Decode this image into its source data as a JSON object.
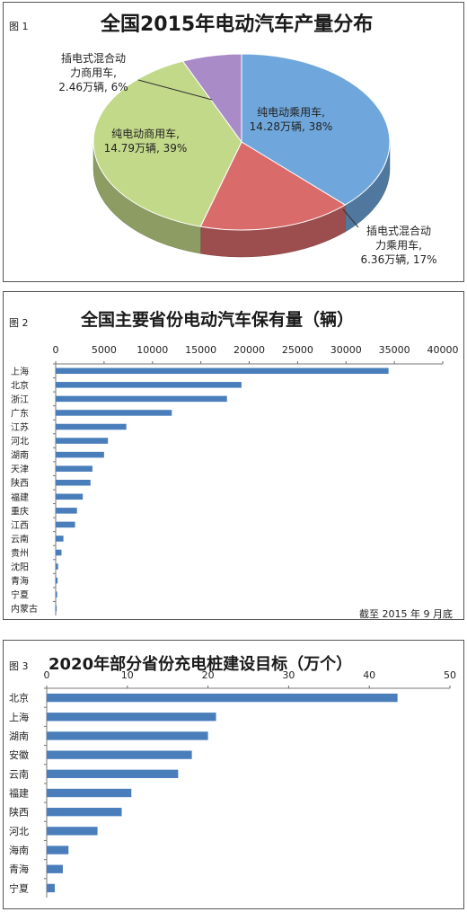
{
  "chart_data": [
    {
      "type": "pie",
      "figure_label": "图 1",
      "title": "全国2015年电动汽车产量分布",
      "slices": [
        {
          "name": "纯电动乘用车",
          "value": 14.28,
          "unit": "万辆",
          "percent": 38,
          "color": "#6fa7dc",
          "label_lines": [
            "纯电动乘用车,",
            "14.28万辆, 38%"
          ]
        },
        {
          "name": "插电式混合动力乘用车",
          "value": 6.36,
          "unit": "万辆",
          "percent": 17,
          "color": "#d96b6b",
          "label_lines": [
            "插电式混合动",
            "力乘用车,",
            "6.36万辆, 17%"
          ]
        },
        {
          "name": "纯电动商用车",
          "value": 14.79,
          "unit": "万辆",
          "percent": 39,
          "color": "#c3d98a",
          "label_lines": [
            "纯电动商用车,",
            "14.79万辆, 39%"
          ]
        },
        {
          "name": "插电式混合动力商用车",
          "value": 2.46,
          "unit": "万辆",
          "percent": 6,
          "color": "#a88bc7",
          "label_lines": [
            "插电式混合动",
            "力商用车,",
            "2.46万辆, 6%"
          ]
        }
      ]
    },
    {
      "type": "bar",
      "orientation": "horizontal",
      "figure_label": "图 2",
      "title": "全国主要省份电动汽车保有量（辆）",
      "xlim": [
        0,
        40000
      ],
      "ticks": [
        "0",
        "5000",
        "10000",
        "15000",
        "20000",
        "25000",
        "30000",
        "35000",
        "40000"
      ],
      "categories": [
        "上海",
        "北京",
        "浙江",
        "广东",
        "江苏",
        "河北",
        "湖南",
        "天津",
        "陕西",
        "福建",
        "重庆",
        "江西",
        "云南",
        "贵州",
        "沈阳",
        "青海",
        "宁夏",
        "内蒙古"
      ],
      "values": [
        34400,
        19200,
        17700,
        12000,
        7300,
        5400,
        5000,
        3800,
        3600,
        2800,
        2200,
        2000,
        800,
        600,
        250,
        200,
        150,
        100
      ],
      "color": "#4a7ebb",
      "annotation": "截至 2015 年 9 月底"
    },
    {
      "type": "bar",
      "orientation": "horizontal",
      "figure_label": "图 3",
      "title": "2020年部分省份充电桩建设目标（万个）",
      "xlim": [
        0,
        50
      ],
      "ticks": [
        "0",
        "10",
        "20",
        "30",
        "40",
        "50"
      ],
      "categories": [
        "北京",
        "上海",
        "湖南",
        "安徽",
        "云南",
        "福建",
        "陕西",
        "河北",
        "海南",
        "青海",
        "宁夏"
      ],
      "values": [
        43.5,
        21,
        20,
        18,
        16.3,
        10.5,
        9.3,
        6.3,
        2.7,
        2.0,
        1.0
      ],
      "color": "#4a7ebb"
    }
  ]
}
